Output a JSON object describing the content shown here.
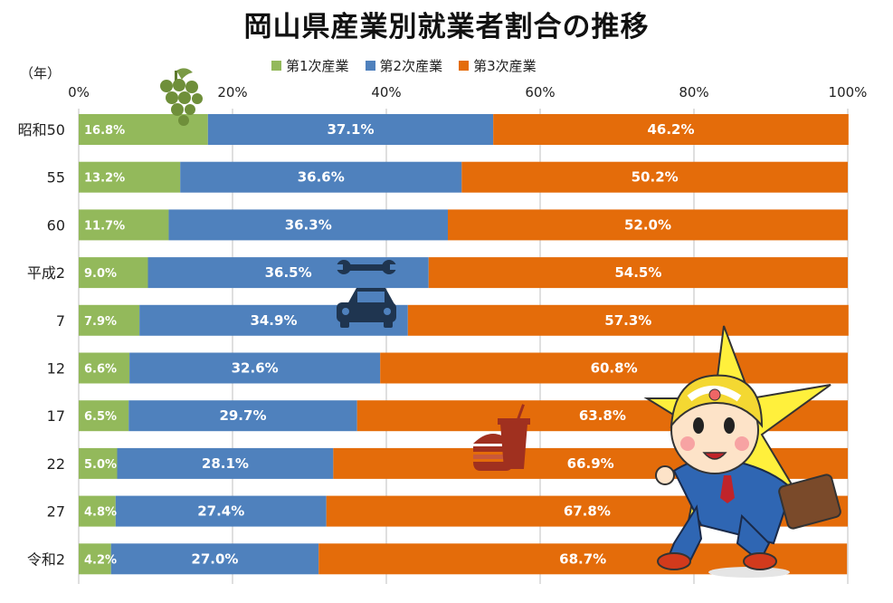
{
  "title": "岡山県産業別就業者割合の推移",
  "colors": {
    "primary": "#93b95b",
    "secondary": "#4f81bd",
    "tertiary": "#e46c0a",
    "grid": "#bfbfbf"
  },
  "chart_data": {
    "type": "bar",
    "orientation": "horizontal",
    "stacked": true,
    "title": "岡山県産業別就業者割合の推移",
    "ylabel": "（年）",
    "xlim": [
      0,
      100
    ],
    "x_ticks": [
      "0%",
      "20%",
      "40%",
      "60%",
      "80%",
      "100%"
    ],
    "legend_position": "top-center",
    "grid": true,
    "categories": [
      "昭和50",
      "55",
      "60",
      "平成2",
      "7",
      "12",
      "17",
      "22",
      "27",
      "令和2"
    ],
    "series": [
      {
        "name": "第1次産業",
        "color": "#93b95b",
        "values": [
          16.8,
          13.2,
          11.7,
          9.0,
          7.9,
          6.6,
          6.5,
          5.0,
          4.8,
          4.2
        ]
      },
      {
        "name": "第2次産業",
        "color": "#4f81bd",
        "values": [
          37.1,
          36.6,
          36.3,
          36.5,
          34.9,
          32.6,
          29.7,
          28.1,
          27.4,
          27.0
        ]
      },
      {
        "name": "第3次産業",
        "color": "#e46c0a",
        "values": [
          46.2,
          50.2,
          52.0,
          54.5,
          57.3,
          60.8,
          63.8,
          66.9,
          67.8,
          68.7
        ]
      }
    ]
  },
  "icons": [
    "grape-icon",
    "wrench-icon",
    "car-icon",
    "burger-drink-icon",
    "mascot-illustration"
  ]
}
